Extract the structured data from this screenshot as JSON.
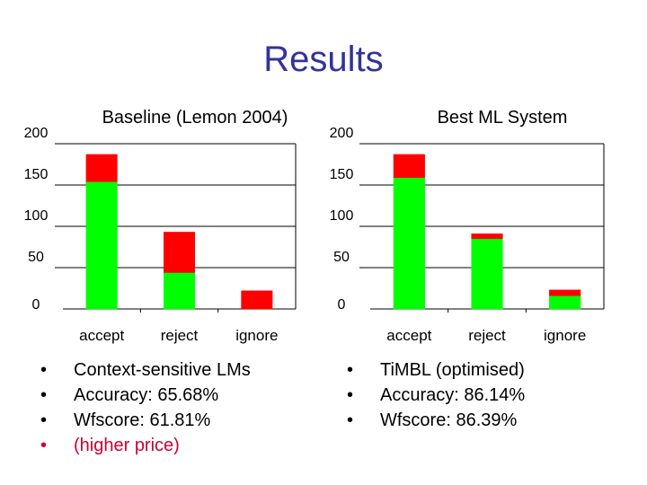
{
  "slide": {
    "title": "Results"
  },
  "chart_data": [
    {
      "type": "bar",
      "stacked": true,
      "title": "Baseline (Lemon 2004)",
      "categories": [
        "accept",
        "reject",
        "ignore"
      ],
      "series": [
        {
          "color": "#00ff00",
          "values": [
            154,
            44,
            0
          ]
        },
        {
          "color": "#ff0000",
          "values": [
            33,
            49,
            22
          ]
        }
      ],
      "ylim": [
        0,
        200
      ],
      "yticks": [
        0,
        50,
        100,
        150,
        200
      ],
      "grid": true
    },
    {
      "type": "bar",
      "stacked": true,
      "title": "Best ML System",
      "categories": [
        "accept",
        "reject",
        "ignore"
      ],
      "series": [
        {
          "color": "#00ff00",
          "values": [
            159,
            85,
            16
          ]
        },
        {
          "color": "#ff0000",
          "values": [
            28,
            6,
            7
          ]
        }
      ],
      "ylim": [
        0,
        200
      ],
      "yticks": [
        0,
        50,
        100,
        150,
        200
      ],
      "grid": true
    }
  ],
  "bullets_left": [
    {
      "text": "Context-sensitive LMs"
    },
    {
      "text": "Accuracy: 65.68%"
    },
    {
      "text": "Wfscore: 61.81%"
    },
    {
      "text": "(higher price)",
      "color": "#cc0033"
    }
  ],
  "bullets_right": [
    {
      "text": "TiMBL (optimised)"
    },
    {
      "text": "Accuracy: 86.14%"
    },
    {
      "text": "Wfscore: 86.39%"
    }
  ]
}
